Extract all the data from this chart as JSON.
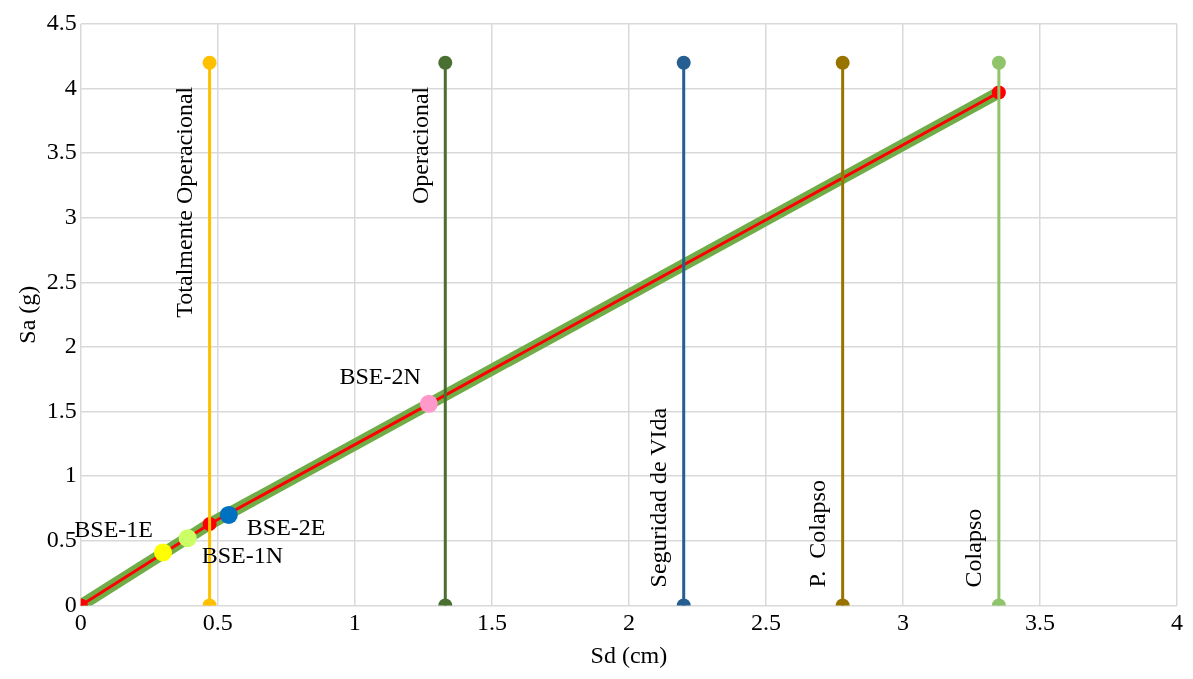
{
  "chart_data": {
    "type": "line",
    "xlabel": "Sd (cm)",
    "ylabel": "Sa (g)",
    "xlim": [
      0,
      4
    ],
    "ylim": [
      0,
      4.5
    ],
    "xticks": [
      0,
      0.5,
      1,
      1.5,
      2,
      2.5,
      3,
      3.5,
      4
    ],
    "yticks": [
      0,
      0.5,
      1,
      1.5,
      2,
      2.5,
      3,
      3.5,
      4,
      4.5
    ],
    "grid": true,
    "legend": false,
    "marker": "circle",
    "series": [
      {
        "type": "line",
        "color": "#70ad47",
        "x": [
          0,
          0.47,
          3.35
        ],
        "values": [
          0,
          0.63,
          3.97
        ],
        "marker": "none"
      },
      {
        "type": "line",
        "color": "#ff0000",
        "x": [
          0,
          0.47,
          3.35
        ],
        "values": [
          0,
          0.63,
          3.97
        ]
      },
      {
        "type": "line",
        "name": "Totalmente Operacional",
        "color": "#ffc000",
        "x": [
          0.47,
          0.47
        ],
        "values": [
          0,
          4.2
        ]
      },
      {
        "type": "line",
        "name": "Operacional",
        "color": "#4a7031",
        "x": [
          1.33,
          1.33
        ],
        "values": [
          0,
          4.2
        ]
      },
      {
        "type": "line",
        "name": "Seguridad de VIda",
        "color": "#255e91",
        "x": [
          2.2,
          2.2
        ],
        "values": [
          0,
          4.2
        ]
      },
      {
        "type": "line",
        "name": "P.  Colapso",
        "color": "#997300",
        "x": [
          2.78,
          2.78
        ],
        "values": [
          0,
          4.2
        ]
      },
      {
        "type": "line",
        "name": "Colapso",
        "color": "#8fc46a",
        "x": [
          3.35,
          3.35
        ],
        "values": [
          0,
          4.2
        ]
      },
      {
        "type": "scatter",
        "name": "BSE-1E",
        "color": "#ffff00",
        "x": [
          0.3
        ],
        "values": [
          0.41
        ]
      },
      {
        "type": "scatter",
        "name": "BSE-1N",
        "color": "#ccff66",
        "x": [
          0.39
        ],
        "values": [
          0.52
        ]
      },
      {
        "type": "scatter",
        "name": "BSE-2E",
        "color": "#0070c0",
        "x": [
          0.54
        ],
        "values": [
          0.7
        ]
      },
      {
        "type": "scatter",
        "name": "BSE-2N",
        "color": "#ff99cc",
        "x": [
          1.27
        ],
        "values": [
          1.56
        ]
      }
    ]
  }
}
